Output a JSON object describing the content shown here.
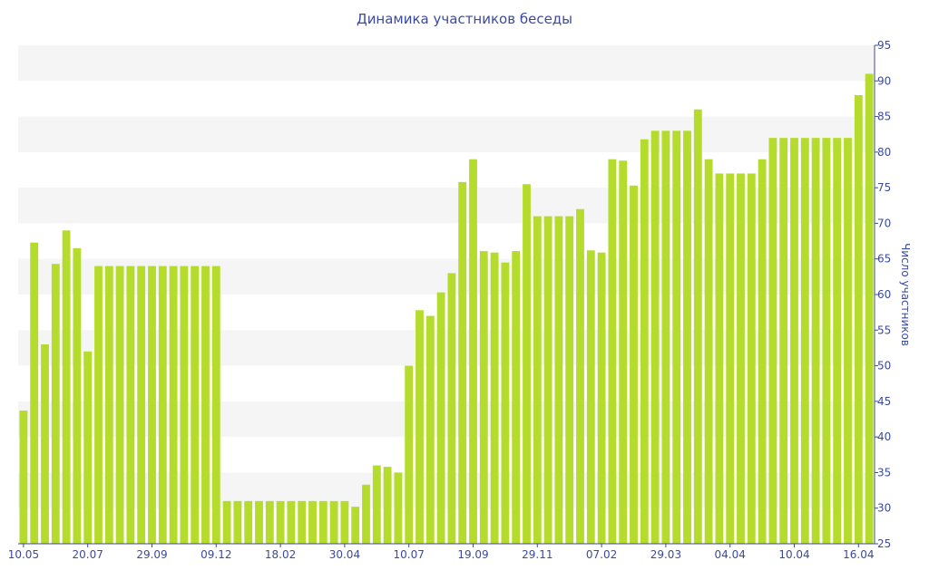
{
  "chart_data": {
    "type": "bar",
    "title": "Динамика участников беседы",
    "xlabel": "",
    "ylabel": "Число участников",
    "ylim": [
      25,
      95
    ],
    "y_ticks": [
      25,
      30,
      35,
      40,
      45,
      50,
      55,
      60,
      65,
      70,
      75,
      80,
      85,
      90,
      95
    ],
    "y_axis_side": "right",
    "grid": "horizontal bands",
    "colors": {
      "bar": "#b5dc2d",
      "band": "#f5f5f5",
      "text": "#3b4aa0",
      "axis": "#3b4aa0"
    },
    "x_tick_labels": [
      {
        "index": 0,
        "label": "10.05"
      },
      {
        "index": 6,
        "label": "20.07"
      },
      {
        "index": 12,
        "label": "29.09"
      },
      {
        "index": 18,
        "label": "09.12"
      },
      {
        "index": 24,
        "label": "18.02"
      },
      {
        "index": 30,
        "label": "30.04"
      },
      {
        "index": 36,
        "label": "10.07"
      },
      {
        "index": 42,
        "label": "19.09"
      },
      {
        "index": 48,
        "label": "29.11"
      },
      {
        "index": 54,
        "label": "07.02"
      },
      {
        "index": 60,
        "label": "29.03"
      },
      {
        "index": 66,
        "label": "04.04"
      },
      {
        "index": 72,
        "label": "10.04"
      },
      {
        "index": 78,
        "label": "16.04"
      }
    ],
    "values": [
      43.7,
      67.3,
      53,
      64.3,
      69,
      66.5,
      52,
      64,
      64,
      64,
      64,
      64,
      64,
      64,
      64,
      64,
      64,
      64,
      64,
      31,
      31,
      31,
      31,
      31,
      31,
      31,
      31,
      31,
      31,
      31,
      31,
      30.2,
      33.3,
      36,
      35.8,
      35,
      50,
      57.8,
      57,
      60.3,
      63,
      75.8,
      79,
      66.1,
      65.9,
      64.5,
      66.1,
      75.5,
      71,
      71,
      71,
      71,
      72,
      66.2,
      65.9,
      79,
      78.8,
      75.3,
      81.8,
      83,
      83,
      83,
      83,
      86,
      79,
      77,
      77,
      77,
      77,
      79,
      82,
      82,
      82,
      82,
      82,
      82,
      82,
      82,
      88,
      91
    ]
  }
}
